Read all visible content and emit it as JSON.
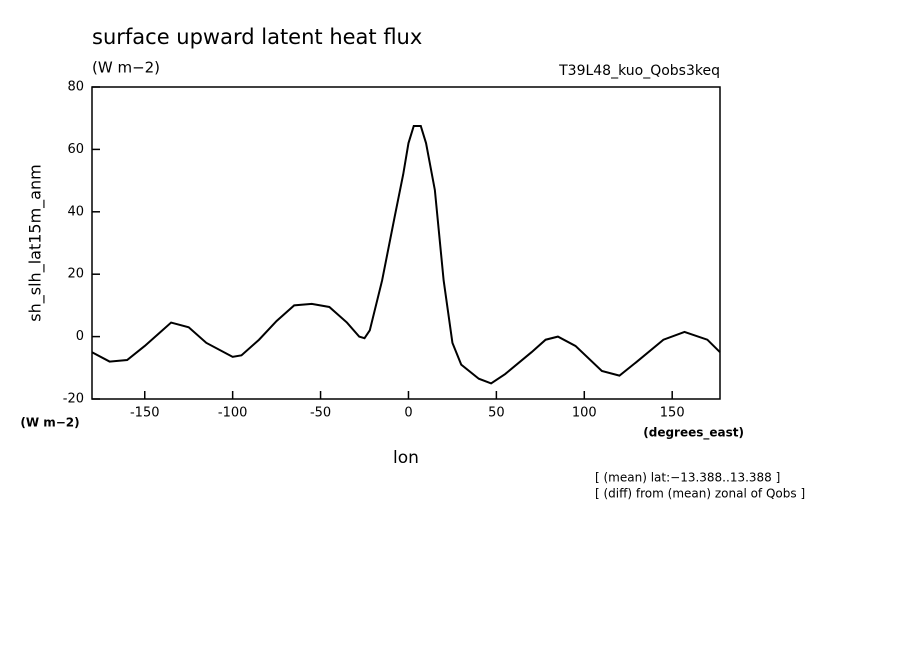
{
  "chart_data": {
    "type": "line",
    "title": "surface upward latent heat flux",
    "units": "(W m−2)",
    "experiment": "T39L48_kuo_Qobs3keq",
    "y_label": "sh_slh_lat15m_anm",
    "y_units": "(W m−2)",
    "x_label": "lon",
    "x_units": "(degrees_east)",
    "notes": [
      "[ (mean) lat:−13.388..13.388 ]",
      "[ (diff) from (mean) zonal of Qobs ]"
    ],
    "x": [
      -180,
      -170,
      -160,
      -150,
      -140,
      -135,
      -125,
      -115,
      -100,
      -95,
      -85,
      -75,
      -65,
      -55,
      -45,
      -35,
      -28,
      -25,
      -22,
      -15,
      -8,
      -3,
      0,
      3,
      7,
      10,
      15,
      20,
      25,
      30,
      40,
      47,
      55,
      70,
      78,
      85,
      95,
      110,
      120,
      130,
      145,
      157,
      170,
      177.1875
    ],
    "series": [
      {
        "name": "sh_slh_lat15m_anm",
        "color": "#000000",
        "values": [
          -5,
          -8,
          -7.5,
          -3,
          2,
          4.5,
          3,
          -2,
          -6.5,
          -6,
          -1,
          5,
          10,
          10.5,
          9.5,
          4.5,
          0,
          -0.5,
          2,
          18,
          38,
          52,
          62,
          67.5,
          67.5,
          62,
          47,
          18,
          -2,
          -9,
          -13.5,
          -15,
          -12,
          -5,
          -1,
          0,
          -3,
          -11,
          -12.5,
          -8,
          -1,
          1.5,
          -1,
          -5
        ]
      }
    ],
    "xlim": [
      -180,
      177.1875
    ],
    "xticks": [
      -150,
      -100,
      -50,
      0,
      50,
      100,
      150
    ],
    "ylim": [
      -20,
      80
    ],
    "yticks": [
      -20,
      0,
      20,
      40,
      60,
      80
    ]
  }
}
